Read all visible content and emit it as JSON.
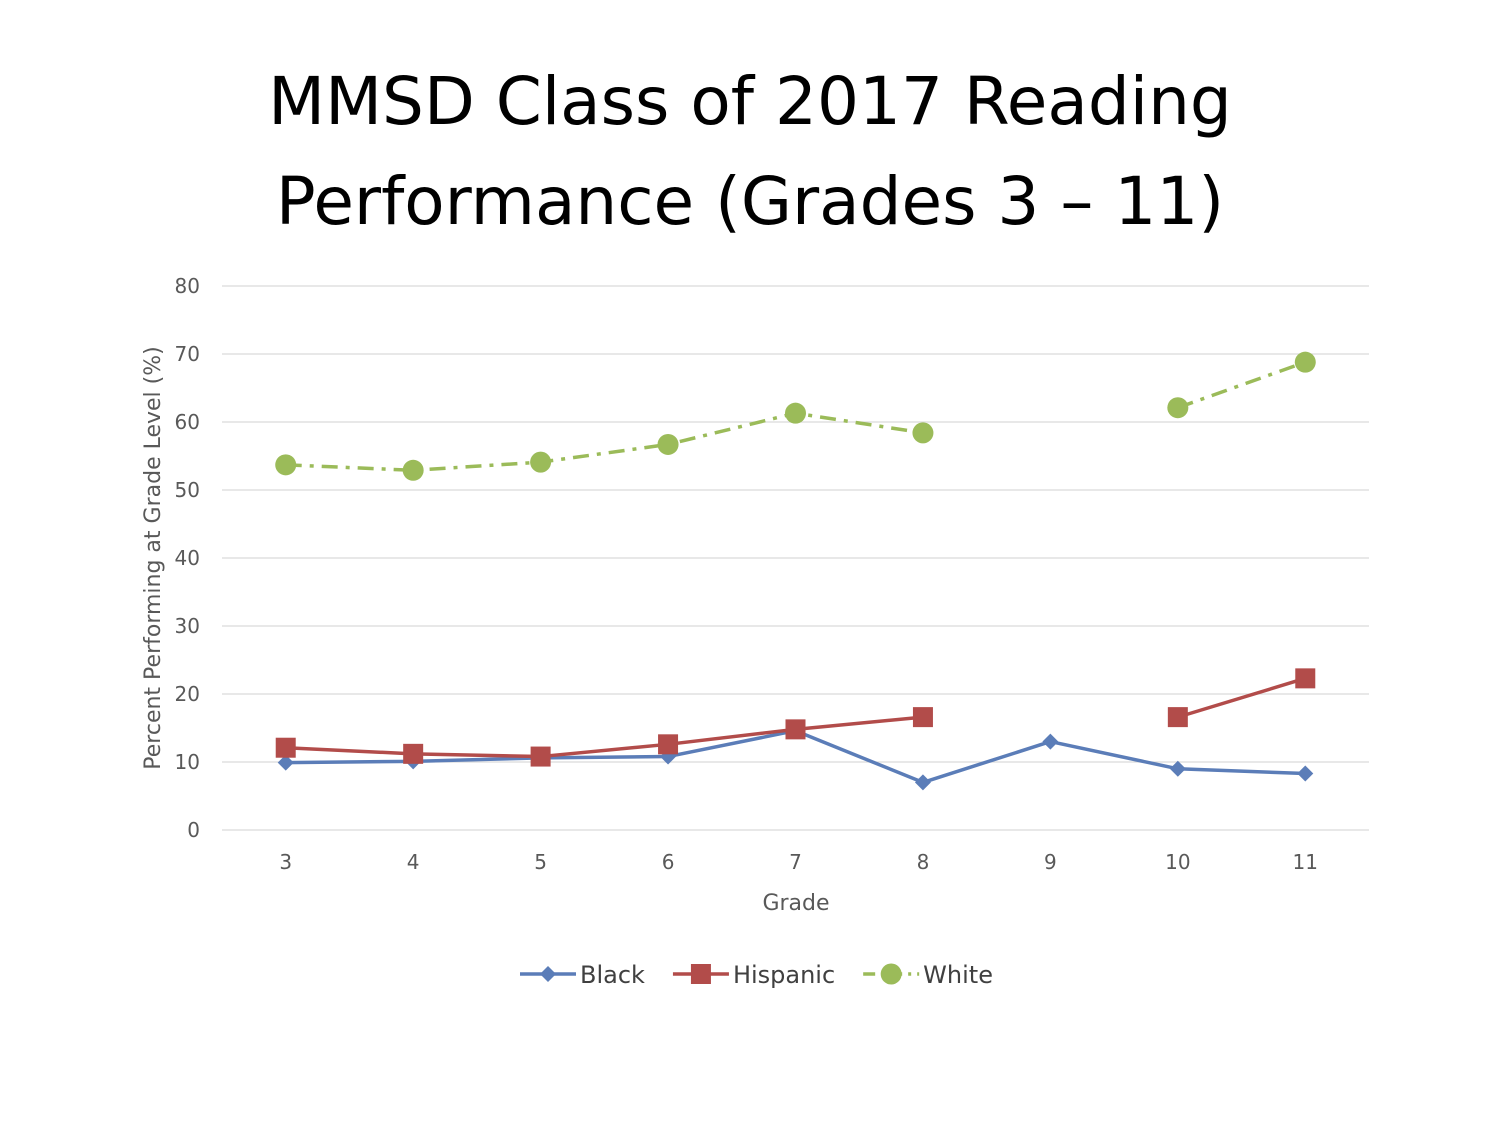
{
  "title": {
    "line1": "MMSD Class of 2017 Reading",
    "line2": "Performance (Grades 3 – 11)"
  },
  "chart_data": {
    "type": "line",
    "title": "MMSD Class of 2017 Reading Performance (Grades 3 – 11)",
    "xlabel": "Grade",
    "ylabel": "Percent Performing at Grade Level (%)",
    "categories": [
      "3",
      "4",
      "5",
      "6",
      "7",
      "8",
      "9",
      "10",
      "11"
    ],
    "ylim": [
      0,
      80
    ],
    "yticks": [
      0,
      10,
      20,
      30,
      40,
      50,
      60,
      70,
      80
    ],
    "grid": "horizontal",
    "legend": "bottom",
    "series": [
      {
        "name": "Black",
        "color": "#5b7db8",
        "marker": "diamond",
        "dash": "solid",
        "values": [
          9.9,
          10.1,
          10.6,
          10.8,
          14.6,
          7.0,
          13.0,
          9.0,
          8.3
        ]
      },
      {
        "name": "Hispanic",
        "color": "#b24c4a",
        "marker": "square",
        "dash": "solid",
        "values": [
          12.1,
          11.2,
          10.8,
          12.6,
          14.8,
          16.6,
          null,
          16.6,
          22.3
        ]
      },
      {
        "name": "White",
        "color": "#9bbb59",
        "marker": "circle",
        "dash": "dashdot",
        "values": [
          53.7,
          52.9,
          54.1,
          56.7,
          61.3,
          58.4,
          null,
          62.1,
          68.8
        ]
      }
    ]
  }
}
